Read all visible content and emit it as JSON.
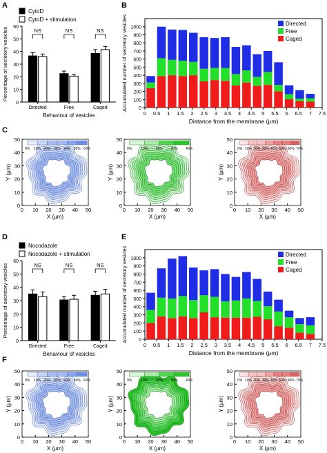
{
  "panel_letters": {
    "a": "A",
    "b": "B",
    "c": "C",
    "d": "D",
    "e": "E",
    "f": "F"
  },
  "colors": {
    "directed": "#1f2ee6",
    "free": "#22e02a",
    "caged": "#f01c1c",
    "blue": "#5b7de0",
    "green": "#2fd12f",
    "red": "#e05a5a"
  },
  "chart_data": [
    {
      "id": "A",
      "type": "bar",
      "ylabel": "Percentage of secretory vesicles",
      "xlabel": "Behaviour of vesicles",
      "ylim": [
        0,
        60
      ],
      "yticks": [
        "0",
        "10",
        "20",
        "30",
        "40",
        "50",
        "60"
      ],
      "categories": [
        "Directed",
        "Free",
        "Caged"
      ],
      "series": [
        {
          "name": "CytoD",
          "values": [
            36.5,
            22.5,
            38.5
          ],
          "errors": [
            2.5,
            2.0,
            3.0
          ]
        },
        {
          "name": "CytoD + stimulation",
          "values": [
            36.0,
            20.5,
            41.5
          ],
          "errors": [
            2.0,
            1.5,
            2.5
          ]
        }
      ],
      "annotations": [
        "NS",
        "NS",
        "NS"
      ]
    },
    {
      "id": "B",
      "type": "bar",
      "stacked": true,
      "ylabel": "Accumulated number of secretory vesicles",
      "xlabel": "Distance from the membrane (µm)",
      "ylim": [
        0,
        1100
      ],
      "yticks": [
        "0",
        "100",
        "200",
        "300",
        "400",
        "500",
        "600",
        "700",
        "800",
        "900",
        "1000"
      ],
      "xticks": [
        "0",
        "0.5",
        "1",
        "1.5",
        "2",
        "2.5",
        "3",
        "3.5",
        "4",
        "4.5",
        "5",
        "5.5",
        "6",
        "6.5",
        "7",
        "7.5"
      ],
      "categories": [
        "0.25",
        "0.5",
        "0.75",
        "1",
        "1.25",
        "1.5",
        "1.75",
        "2",
        "2.25",
        "2.5",
        "2.75",
        "3",
        "3.25",
        "3.5",
        "3.75",
        "4"
      ],
      "series": [
        {
          "name": "Caged",
          "values": [
            240,
            390,
            400,
            390,
            400,
            325,
            340,
            330,
            275,
            310,
            270,
            280,
            200,
            105,
            80,
            75
          ]
        },
        {
          "name": "Free",
          "values": [
            70,
            220,
            190,
            190,
            165,
            155,
            150,
            160,
            140,
            150,
            110,
            160,
            80,
            60,
            30,
            40
          ]
        },
        {
          "name": "Directed",
          "values": [
            80,
            390,
            375,
            380,
            360,
            390,
            370,
            380,
            335,
            310,
            280,
            260,
            280,
            110,
            105,
            55
          ]
        }
      ],
      "legend": [
        "Directed",
        "Free",
        "Caged"
      ],
      "legend_position": "top-right"
    },
    {
      "id": "D",
      "type": "bar",
      "ylabel": "Percentage of secretory vesicles",
      "xlabel": "Behaviour of vesicles",
      "ylim": [
        0,
        60
      ],
      "yticks": [
        "0",
        "10",
        "20",
        "30",
        "40",
        "50",
        "60"
      ],
      "categories": [
        "Directed",
        "Free",
        "Caged"
      ],
      "series": [
        {
          "name": "Nocodazole",
          "values": [
            35.0,
            30.5,
            34.0
          ],
          "errors": [
            3.0,
            2.5,
            3.0
          ]
        },
        {
          "name": "Nocodazole + stimulation",
          "values": [
            33.0,
            31.0,
            35.0
          ],
          "errors": [
            3.5,
            3.0,
            3.5
          ]
        }
      ],
      "annotations": [
        "NS",
        "NS",
        "NS"
      ]
    },
    {
      "id": "E",
      "type": "bar",
      "stacked": true,
      "ylabel": "Accumulated number of secretory vesicles",
      "xlabel": "Distance from the membrane (µm)",
      "ylim": [
        0,
        1100
      ],
      "yticks": [
        "0",
        "100",
        "200",
        "300",
        "400",
        "500",
        "600",
        "700",
        "800",
        "900",
        "1000"
      ],
      "xticks": [
        "0",
        "0.5",
        "1",
        "1.5",
        "2",
        "2.5",
        "3",
        "3.5",
        "4",
        "4.5",
        "5",
        "5.5",
        "6",
        "6.5",
        "7",
        "7.5"
      ],
      "categories": [
        "0.25",
        "0.5",
        "0.75",
        "1",
        "1.25",
        "1.5",
        "1.75",
        "2",
        "2.25",
        "2.5",
        "2.75",
        "3",
        "3.25",
        "3.5",
        "3.75",
        "4"
      ],
      "series": [
        {
          "name": "Caged",
          "values": [
            200,
            280,
            260,
            280,
            260,
            330,
            270,
            265,
            265,
            265,
            275,
            245,
            160,
            140,
            80,
            65
          ]
        },
        {
          "name": "Free",
          "values": [
            160,
            230,
            240,
            250,
            220,
            210,
            250,
            200,
            210,
            235,
            195,
            160,
            180,
            130,
            105,
            105
          ]
        },
        {
          "name": "Directed",
          "values": [
            210,
            360,
            490,
            490,
            400,
            305,
            340,
            335,
            290,
            325,
            270,
            180,
            145,
            80,
            75,
            100
          ]
        }
      ],
      "legend": [
        "Directed",
        "Free",
        "Caged"
      ],
      "legend_position": "top-right"
    },
    {
      "id": "C-blue",
      "type": "heatmap",
      "xlabel": "X (µm)",
      "ylabel": "Y (µm)",
      "xlim": [
        0,
        50
      ],
      "ylim": [
        0,
        50
      ],
      "ticks": [
        "0",
        "10",
        "20",
        "30",
        "40",
        "50"
      ],
      "colorbar": [
        "0%",
        "10%",
        "20%",
        "30%",
        "40%",
        "50%",
        "60%"
      ],
      "color": "blue"
    },
    {
      "id": "C-green",
      "type": "heatmap",
      "xlabel": "X (µm)",
      "ylabel": "Y (µm)",
      "xlim": [
        0,
        50
      ],
      "ylim": [
        0,
        50
      ],
      "ticks": [
        "0",
        "10",
        "20",
        "30",
        "40",
        "50"
      ],
      "colorbar": [
        "0%",
        "10%",
        "20%",
        "30%",
        "40%"
      ],
      "color": "green"
    },
    {
      "id": "C-red",
      "type": "heatmap",
      "xlabel": "X (µm)",
      "ylabel": "Y (µm)",
      "xlim": [
        0,
        50
      ],
      "ylim": [
        0,
        50
      ],
      "ticks": [
        "0",
        "10",
        "20",
        "30",
        "40",
        "50"
      ],
      "colorbar": [
        "0%",
        "10%",
        "20%",
        "30%",
        "40%",
        "50%",
        "60%",
        "70%"
      ],
      "color": "red"
    },
    {
      "id": "F-blue",
      "type": "heatmap",
      "xlabel": "X (µm)",
      "ylabel": "Y (µm)",
      "xlim": [
        0,
        50
      ],
      "ylim": [
        0,
        50
      ],
      "ticks": [
        "0",
        "10",
        "20",
        "30",
        "40",
        "50"
      ],
      "colorbar": [
        "0%",
        "10%",
        "20%",
        "30%",
        "40%",
        "50%",
        "60%"
      ],
      "color": "blue"
    },
    {
      "id": "F-green",
      "type": "heatmap",
      "xlabel": "X (µm)",
      "ylabel": "Y (µm)",
      "xlim": [
        0,
        50
      ],
      "ylim": [
        0,
        50
      ],
      "ticks": [
        "0",
        "10",
        "20",
        "30",
        "40",
        "50"
      ],
      "colorbar": [
        "0%",
        "10%",
        "20%",
        "30%",
        "40%"
      ],
      "color": "green"
    },
    {
      "id": "F-red",
      "type": "heatmap",
      "xlabel": "X (µm)",
      "ylabel": "Y (µm)",
      "xlim": [
        0,
        50
      ],
      "ylim": [
        0,
        50
      ],
      "ticks": [
        "0",
        "10",
        "20",
        "30",
        "40",
        "50"
      ],
      "colorbar": [
        "0%",
        "10%",
        "20%",
        "30%",
        "40%",
        "50%",
        "60%",
        "70%"
      ],
      "color": "red"
    }
  ]
}
